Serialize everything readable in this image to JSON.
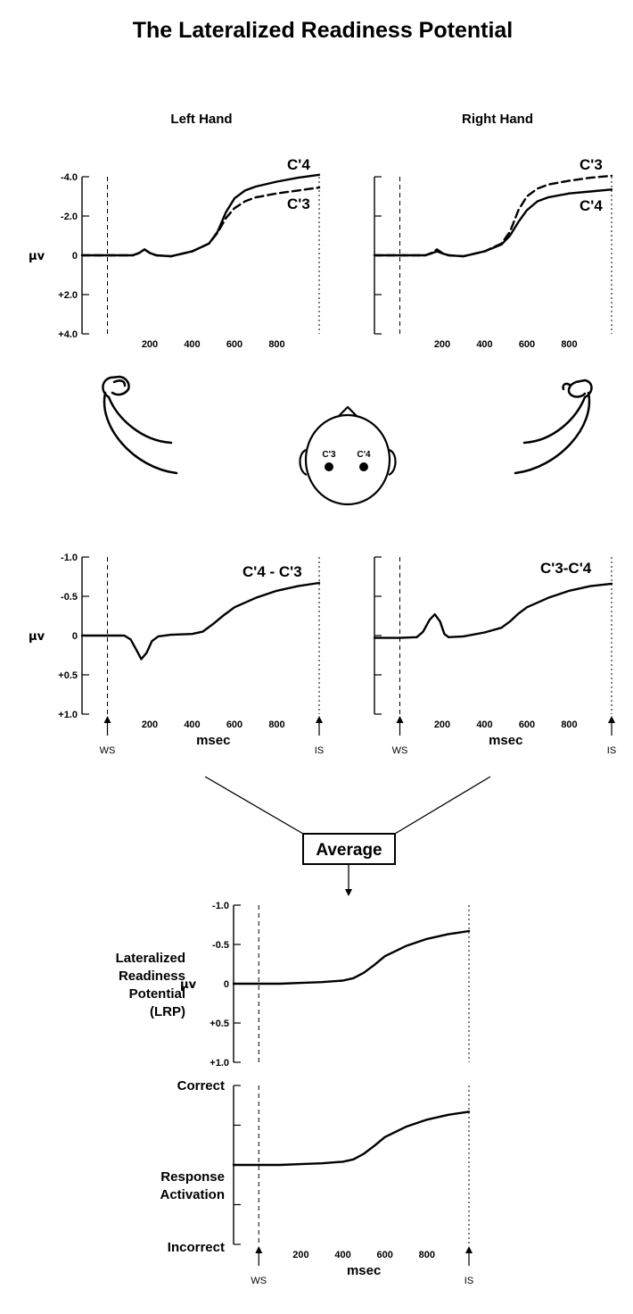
{
  "title": "The Lateralized Readiness Potential",
  "panels": {
    "left": {
      "heading": "Left Hand"
    },
    "right": {
      "heading": "Right Hand"
    },
    "left_diff": {
      "curve_label": "C'4 - C'3"
    },
    "right_diff": {
      "curve_label": "C'3-C'4"
    }
  },
  "head_labels": {
    "left_electrode": "C'3",
    "right_electrode": "C'4"
  },
  "average_label": "Average",
  "lrp_label": [
    "Lateralized",
    "Readiness",
    "Potential",
    "(LRP)"
  ],
  "activation": {
    "top_label": "Correct",
    "middle_label": [
      "Response",
      "Activation"
    ],
    "bottom_label": "Incorrect"
  },
  "markers": {
    "start": "WS",
    "end": "IS"
  },
  "axis_labels": {
    "unit_y": "µv",
    "x": "msec"
  },
  "chart_data": [
    {
      "type": "line",
      "id": "left-hand",
      "title": "Left Hand",
      "ylabel": "µv",
      "xlim": [
        -120,
        1000
      ],
      "ylim": [
        4.0,
        -4.0
      ],
      "y_inverted": true,
      "yticks": [
        "-4.0",
        "-2.0",
        "0",
        "+2.0",
        "+4.0"
      ],
      "xticks": [
        "200",
        "400",
        "600",
        "800"
      ],
      "series": [
        {
          "name": "C'4",
          "style": "solid",
          "x": [
            -120,
            0,
            120,
            150,
            175,
            200,
            230,
            300,
            400,
            480,
            520,
            560,
            600,
            650,
            700,
            800,
            900,
            1000
          ],
          "y": [
            0,
            0,
            0,
            -0.12,
            -0.3,
            -0.12,
            0,
            0.05,
            -0.2,
            -0.6,
            -1.2,
            -2.2,
            -2.9,
            -3.3,
            -3.5,
            -3.75,
            -3.95,
            -4.1
          ]
        },
        {
          "name": "C'3",
          "style": "dashed",
          "x": [
            -120,
            0,
            120,
            150,
            175,
            200,
            230,
            300,
            400,
            480,
            520,
            560,
            600,
            650,
            700,
            800,
            900,
            1000
          ],
          "y": [
            0,
            0,
            0,
            -0.12,
            -0.3,
            -0.12,
            0,
            0.05,
            -0.2,
            -0.6,
            -1.15,
            -1.9,
            -2.4,
            -2.75,
            -2.95,
            -3.15,
            -3.3,
            -3.45
          ]
        }
      ]
    },
    {
      "type": "line",
      "id": "right-hand",
      "title": "Right Hand",
      "xlim": [
        -120,
        1000
      ],
      "ylim": [
        4.0,
        -4.0
      ],
      "y_inverted": true,
      "xticks": [
        "200",
        "400",
        "600",
        "800"
      ],
      "series": [
        {
          "name": "C'3",
          "style": "dashed",
          "x": [
            -120,
            0,
            120,
            150,
            175,
            200,
            230,
            300,
            400,
            480,
            520,
            560,
            600,
            650,
            700,
            800,
            900,
            1000
          ],
          "y": [
            0,
            0,
            0,
            -0.12,
            -0.3,
            -0.12,
            0,
            0.05,
            -0.2,
            -0.6,
            -1.2,
            -2.3,
            -3.0,
            -3.4,
            -3.6,
            -3.8,
            -3.95,
            -4.05
          ]
        },
        {
          "name": "C'4",
          "style": "solid",
          "x": [
            -120,
            0,
            120,
            150,
            175,
            200,
            230,
            300,
            400,
            480,
            520,
            560,
            600,
            650,
            700,
            800,
            900,
            1000
          ],
          "y": [
            0,
            0,
            0,
            -0.1,
            -0.2,
            -0.1,
            0,
            0.05,
            -0.2,
            -0.55,
            -1.0,
            -1.7,
            -2.3,
            -2.75,
            -2.95,
            -3.15,
            -3.25,
            -3.35
          ]
        }
      ]
    },
    {
      "type": "line",
      "id": "left-diff",
      "xlabel": "msec",
      "ylabel": "µv",
      "xlim": [
        -120,
        1000
      ],
      "ylim": [
        1.0,
        -1.0
      ],
      "y_inverted": true,
      "yticks": [
        "-1.0",
        "-0.5",
        "0",
        "+0.5",
        "+1.0"
      ],
      "xticks": [
        "200",
        "400",
        "600",
        "800"
      ],
      "series": [
        {
          "name": "C'4 - C'3",
          "style": "solid",
          "x": [
            -120,
            0,
            80,
            110,
            140,
            160,
            185,
            210,
            240,
            300,
            400,
            450,
            500,
            550,
            600,
            700,
            800,
            900,
            1000
          ],
          "y": [
            0,
            0,
            0,
            0.05,
            0.2,
            0.3,
            0.22,
            0.07,
            0.01,
            -0.01,
            -0.02,
            -0.05,
            -0.15,
            -0.26,
            -0.36,
            -0.48,
            -0.57,
            -0.63,
            -0.67
          ]
        }
      ]
    },
    {
      "type": "line",
      "id": "right-diff",
      "xlabel": "msec",
      "xlim": [
        -120,
        1000
      ],
      "ylim": [
        1.0,
        -1.0
      ],
      "y_inverted": true,
      "xticks": [
        "200",
        "400",
        "600",
        "800"
      ],
      "series": [
        {
          "name": "C'3-C'4",
          "style": "solid",
          "x": [
            -120,
            0,
            80,
            110,
            140,
            165,
            190,
            210,
            230,
            300,
            400,
            480,
            520,
            560,
            600,
            700,
            800,
            900,
            1000
          ],
          "y": [
            0.03,
            0.03,
            0.02,
            -0.05,
            -0.2,
            -0.27,
            -0.18,
            -0.02,
            0.02,
            0.01,
            -0.04,
            -0.1,
            -0.18,
            -0.28,
            -0.36,
            -0.48,
            -0.57,
            -0.63,
            -0.66
          ]
        }
      ]
    },
    {
      "type": "line",
      "id": "lrp",
      "ylabel": "µv",
      "xlim": [
        -120,
        1000
      ],
      "ylim": [
        1.0,
        -1.0
      ],
      "y_inverted": true,
      "yticks": [
        "-1.0",
        "-0.5",
        "0",
        "+0.5",
        "+1.0"
      ],
      "series": [
        {
          "name": "LRP",
          "style": "solid",
          "x": [
            -120,
            0,
            100,
            200,
            300,
            400,
            450,
            500,
            550,
            600,
            700,
            800,
            900,
            1000
          ],
          "y": [
            0,
            0,
            0,
            -0.01,
            -0.02,
            -0.04,
            -0.07,
            -0.14,
            -0.24,
            -0.35,
            -0.48,
            -0.57,
            -0.63,
            -0.67
          ]
        }
      ]
    },
    {
      "type": "line",
      "id": "response-activation",
      "xlabel": "msec",
      "xlim": [
        -120,
        1000
      ],
      "ylim": [
        -1.0,
        1.0
      ],
      "yticks": [
        "Incorrect",
        "Response Activation",
        "Correct"
      ],
      "xticks": [
        "200",
        "400",
        "600",
        "800"
      ],
      "series": [
        {
          "name": "Response Activation",
          "style": "solid",
          "x": [
            -120,
            0,
            100,
            200,
            300,
            400,
            450,
            500,
            550,
            600,
            700,
            800,
            900,
            1000
          ],
          "y": [
            0,
            0,
            0,
            0.01,
            0.02,
            0.04,
            0.07,
            0.14,
            0.24,
            0.35,
            0.48,
            0.57,
            0.63,
            0.67
          ]
        }
      ]
    }
  ]
}
